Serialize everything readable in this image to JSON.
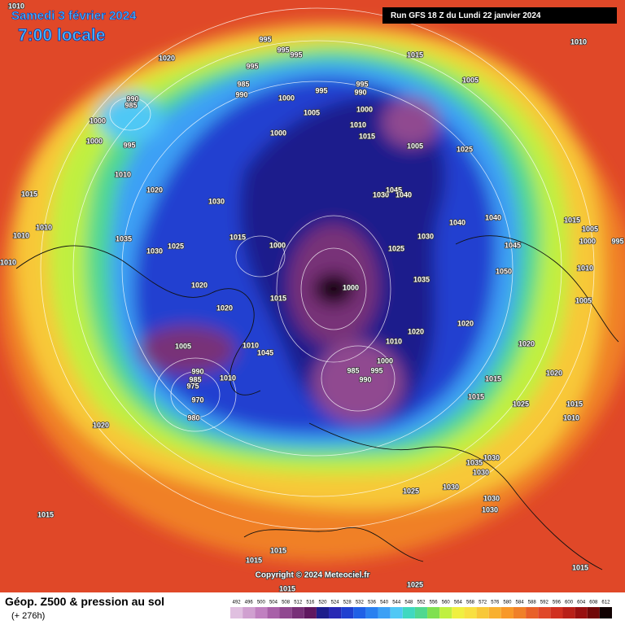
{
  "header": {
    "date": "Samedi 3 février 2024",
    "time": "7:00 locale",
    "run": "Run GFS 18 Z du Lundi 22 janvier 2024"
  },
  "footer": {
    "title": "Géop. Z500 & pression au sol",
    "lead": "(+ 276h)",
    "copyright": "Copyright © 2024 Meteociel.fr"
  },
  "legend": {
    "values": [
      492,
      496,
      500,
      504,
      508,
      512,
      516,
      520,
      524,
      528,
      532,
      536,
      540,
      544,
      548,
      552,
      556,
      560,
      564,
      568,
      572,
      576,
      580,
      584,
      588,
      592,
      596,
      600,
      604,
      608,
      612
    ],
    "colors": [
      "#e0c0e0",
      "#d0a0d0",
      "#c080c0",
      "#a860a8",
      "#904890",
      "#783078",
      "#601860",
      "#1e1e8c",
      "#2828b4",
      "#2040d0",
      "#2060e6",
      "#2a80f0",
      "#3ca0f5",
      "#50c8f5",
      "#40d8c0",
      "#50d890",
      "#80e050",
      "#c0f040",
      "#f0f040",
      "#f8e040",
      "#f8c838",
      "#f8b030",
      "#f89828",
      "#f08028",
      "#e86028",
      "#e04828",
      "#d03020",
      "#b82018",
      "#981010",
      "#700808",
      "#100000"
    ]
  },
  "map": {
    "pressure_labels": [
      1010,
      1020,
      995,
      995,
      995,
      995,
      985,
      990,
      1000,
      990,
      985,
      1000,
      1000,
      995,
      1010,
      1015,
      1020,
      1030,
      1010,
      1010,
      1035,
      1030,
      1025,
      1015,
      1000,
      1010,
      1020,
      1020,
      1015,
      1005,
      1010,
      1045,
      990,
      985,
      975,
      970,
      980,
      1010,
      1020,
      1000,
      1000,
      995,
      995,
      990,
      1000,
      1005,
      1010,
      1015,
      1005,
      1025,
      1030,
      1045,
      1040,
      1025,
      1030,
      1035,
      1040,
      1040,
      1045,
      1050,
      1015,
      1005,
      1000,
      995,
      1010,
      1005,
      1020,
      1020,
      1010,
      1000,
      995,
      985,
      990,
      1020,
      1020,
      1015,
      1015,
      1025,
      1015,
      1010,
      1035,
      1030,
      1030,
      1025,
      1030,
      1030,
      1030,
      1015,
      1015,
      1015,
      1015,
      1015,
      1025,
      1010,
      1005,
      1015
    ]
  }
}
